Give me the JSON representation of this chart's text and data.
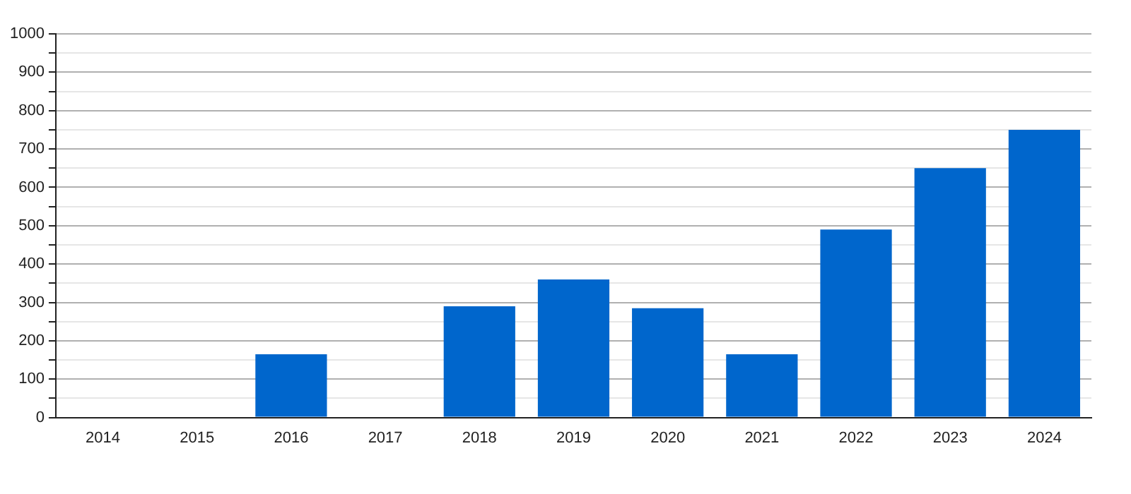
{
  "chart_data": {
    "type": "bar",
    "categories": [
      "2014",
      "2015",
      "2016",
      "2017",
      "2018",
      "2019",
      "2020",
      "2021",
      "2022",
      "2023",
      "2024"
    ],
    "values": [
      0,
      0,
      165,
      0,
      290,
      360,
      285,
      165,
      490,
      650,
      750
    ],
    "color": "#0066cc",
    "ylim": [
      0,
      1000
    ],
    "yticks": [
      0,
      {
        "value": 50,
        "label": null
      },
      100,
      {
        "value": 150,
        "label": null
      },
      200,
      {
        "value": 250,
        "label": null
      },
      300,
      {
        "value": 350,
        "label": null
      },
      400,
      {
        "value": 450,
        "label": null
      },
      500,
      {
        "value": 550,
        "label": null
      },
      600,
      {
        "value": 650,
        "label": null
      },
      700,
      {
        "value": 750,
        "label": null
      },
      800,
      {
        "value": 850,
        "label": null
      },
      900,
      {
        "value": 950,
        "label": null
      },
      1000
    ],
    "grid": "y",
    "legend": false
  }
}
